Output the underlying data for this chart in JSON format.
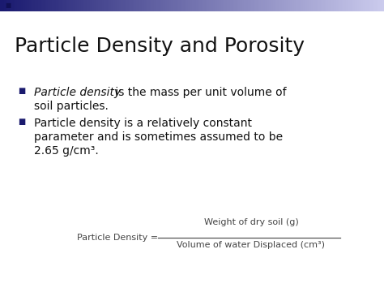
{
  "title": "Particle Density and Porosity",
  "title_fontsize": 18,
  "bg_color": "#ffffff",
  "header_gradient_left": "#1a1a70",
  "header_gradient_right": "#ccccee",
  "bullet_color": "#1a1a6e",
  "bullet1_italic": "Particle density",
  "bullet1_normal": " is the mass per unit volume of",
  "bullet1_line2": "soil particles.",
  "bullet2_line1": "Particle density is a relatively constant",
  "bullet2_line2": "parameter and is sometimes assumed to be",
  "bullet2_line3": "2.65 g/cm³.",
  "formula_label": "Particle Density = ",
  "formula_numerator": "Weight of dry soil (g)",
  "formula_denominator": "Volume of water Displaced (cm³)",
  "text_color": "#111111",
  "formula_text_color": "#444444",
  "bullet_fontsize": 10,
  "formula_fontsize": 8
}
